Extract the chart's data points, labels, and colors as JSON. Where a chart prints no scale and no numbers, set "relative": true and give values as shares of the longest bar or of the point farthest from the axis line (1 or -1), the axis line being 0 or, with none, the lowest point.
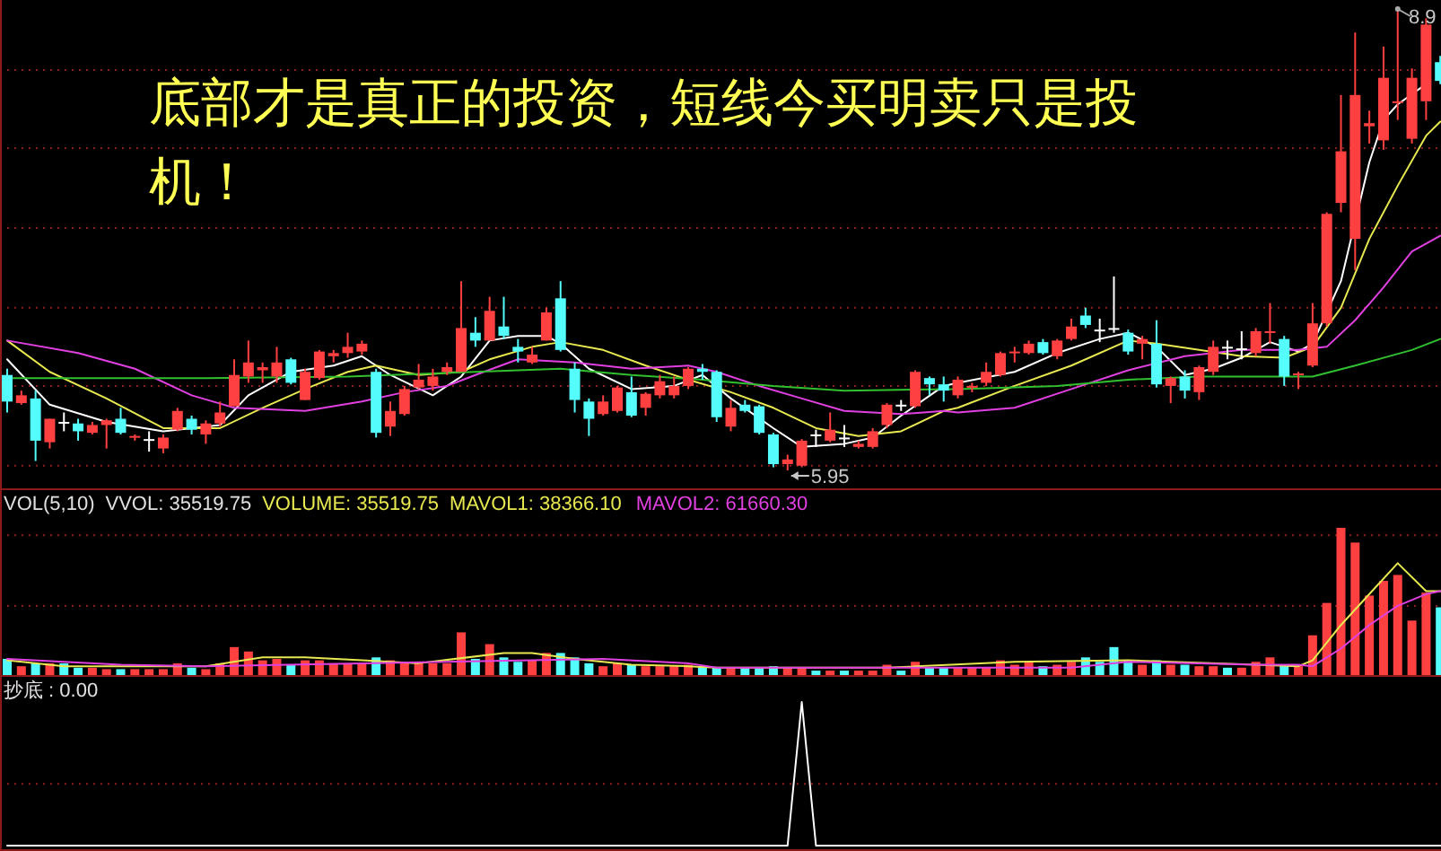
{
  "chart_data": [
    {
      "type": "candlestick",
      "title": "底部才是真正的投资，短线今买明卖只是投机！",
      "ref_lines": [
        {
          "axis": "y",
          "value": 8.51,
          "color": "#8b2020",
          "line_style": "dotted"
        },
        {
          "axis": "y",
          "value": 8.01,
          "color": "#8b2020",
          "line_style": "dotted"
        },
        {
          "axis": "y",
          "value": 7.5,
          "color": "#8b2020",
          "line_style": "dotted"
        },
        {
          "axis": "y",
          "value": 6.99,
          "color": "#8b2020",
          "line_style": "dotted"
        },
        {
          "axis": "y",
          "value": 6.49,
          "color": "#8b2020",
          "line_style": "dotted"
        },
        {
          "axis": "y",
          "value": 5.98,
          "color": "#8b2020",
          "line_style": "dotted"
        }
      ],
      "categories": [
        null,
        null,
        null,
        null,
        null,
        null,
        null,
        null,
        null,
        null,
        null,
        null,
        null,
        null,
        null,
        null,
        null,
        null,
        null,
        null,
        null,
        null,
        null,
        null,
        null,
        null,
        null,
        null,
        null,
        null,
        null,
        null,
        null,
        null,
        null,
        null,
        null,
        null,
        null,
        null,
        null,
        null,
        null,
        null,
        null,
        null,
        null,
        null,
        null,
        null,
        null,
        null,
        null,
        null,
        null,
        null,
        null,
        null,
        null,
        null,
        null,
        null,
        null,
        null,
        null,
        null,
        null,
        null,
        null,
        null,
        null,
        null,
        null,
        null,
        null,
        null,
        null,
        null,
        null,
        null,
        null,
        null,
        null,
        null,
        null,
        null,
        null,
        null,
        null,
        null,
        null,
        null,
        null,
        null,
        null,
        null,
        null,
        null,
        null,
        null,
        null,
        null
      ],
      "ohlc": [
        [
          6.56,
          6.6,
          6.32,
          6.39
        ],
        [
          6.38,
          6.46,
          6.37,
          6.43
        ],
        [
          6.41,
          6.46,
          6.01,
          6.14
        ],
        [
          6.13,
          6.28,
          6.09,
          6.28
        ],
        [
          6.26,
          6.32,
          6.2,
          6.26
        ],
        [
          6.25,
          6.28,
          6.14,
          6.2
        ],
        [
          6.19,
          6.26,
          6.18,
          6.24
        ],
        [
          6.24,
          6.28,
          6.09,
          6.27
        ],
        [
          6.28,
          6.35,
          6.18,
          6.19
        ],
        [
          6.16,
          6.18,
          6.14,
          6.17
        ],
        [
          6.15,
          6.2,
          6.07,
          6.15
        ],
        [
          6.09,
          6.18,
          6.06,
          6.16
        ],
        [
          6.21,
          6.35,
          6.2,
          6.33
        ],
        [
          6.28,
          6.3,
          6.18,
          6.21
        ],
        [
          6.18,
          6.27,
          6.12,
          6.25
        ],
        [
          6.25,
          6.39,
          6.23,
          6.32
        ],
        [
          6.36,
          6.66,
          6.36,
          6.56
        ],
        [
          6.55,
          6.78,
          6.51,
          6.64
        ],
        [
          6.59,
          6.64,
          6.51,
          6.61
        ],
        [
          6.55,
          6.74,
          6.51,
          6.64
        ],
        [
          6.66,
          6.67,
          6.5,
          6.51
        ],
        [
          6.4,
          6.6,
          6.4,
          6.58
        ],
        [
          6.54,
          6.72,
          6.53,
          6.71
        ],
        [
          6.68,
          6.72,
          6.64,
          6.7
        ],
        [
          6.7,
          6.83,
          6.67,
          6.74
        ],
        [
          6.71,
          6.78,
          6.69,
          6.76
        ],
        [
          6.58,
          6.6,
          6.16,
          6.19
        ],
        [
          6.23,
          6.39,
          6.17,
          6.33
        ],
        [
          6.31,
          6.49,
          6.3,
          6.47
        ],
        [
          6.48,
          6.63,
          6.47,
          6.53
        ],
        [
          6.49,
          6.6,
          6.46,
          6.55
        ],
        [
          6.58,
          6.64,
          6.56,
          6.61
        ],
        [
          6.58,
          7.16,
          6.58,
          6.86
        ],
        [
          6.83,
          6.93,
          6.74,
          6.78
        ],
        [
          6.78,
          7.06,
          6.78,
          6.97
        ],
        [
          6.87,
          7.06,
          6.79,
          6.81
        ],
        [
          6.74,
          6.79,
          6.64,
          6.71
        ],
        [
          6.64,
          6.74,
          6.63,
          6.69
        ],
        [
          6.78,
          6.99,
          6.78,
          6.96
        ],
        [
          7.05,
          7.16,
          6.71,
          6.72
        ],
        [
          6.6,
          6.64,
          6.32,
          6.4
        ],
        [
          6.39,
          6.41,
          6.17,
          6.28
        ],
        [
          6.31,
          6.43,
          6.3,
          6.39
        ],
        [
          6.33,
          6.49,
          6.32,
          6.48
        ],
        [
          6.45,
          6.55,
          6.29,
          6.3
        ],
        [
          6.35,
          6.45,
          6.3,
          6.44
        ],
        [
          6.43,
          6.56,
          6.41,
          6.52
        ],
        [
          6.43,
          6.55,
          6.41,
          6.49
        ],
        [
          6.49,
          6.61,
          6.47,
          6.6
        ],
        [
          6.6,
          6.63,
          6.53,
          6.58
        ],
        [
          6.58,
          6.59,
          6.26,
          6.29
        ],
        [
          6.23,
          6.4,
          6.2,
          6.35
        ],
        [
          6.37,
          6.4,
          6.32,
          6.33
        ],
        [
          6.36,
          6.37,
          6.18,
          6.19
        ],
        [
          6.18,
          6.19,
          5.97,
          5.99
        ],
        [
          5.99,
          6.05,
          5.95,
          6.02
        ],
        [
          5.98,
          6.15,
          5.97,
          6.14
        ],
        [
          6.18,
          6.21,
          6.1,
          6.18
        ],
        [
          6.14,
          6.32,
          6.13,
          6.21
        ],
        [
          6.16,
          6.24,
          6.1,
          6.16
        ],
        [
          6.1,
          6.14,
          6.09,
          6.12
        ],
        [
          6.1,
          6.22,
          6.09,
          6.2
        ],
        [
          6.24,
          6.38,
          6.22,
          6.37
        ],
        [
          6.37,
          6.4,
          6.33,
          6.37
        ],
        [
          6.36,
          6.59,
          6.35,
          6.58
        ],
        [
          6.54,
          6.55,
          6.43,
          6.5
        ],
        [
          6.5,
          6.55,
          6.39,
          6.46
        ],
        [
          6.43,
          6.55,
          6.41,
          6.53
        ],
        [
          6.48,
          6.51,
          6.45,
          6.49
        ],
        [
          6.51,
          6.64,
          6.49,
          6.58
        ],
        [
          6.56,
          6.71,
          6.55,
          6.7
        ],
        [
          6.7,
          6.74,
          6.64,
          6.71
        ],
        [
          6.7,
          6.78,
          6.69,
          6.76
        ],
        [
          6.77,
          6.79,
          6.69,
          6.7
        ],
        [
          6.68,
          6.79,
          6.66,
          6.78
        ],
        [
          6.79,
          6.92,
          6.78,
          6.87
        ],
        [
          6.94,
          6.99,
          6.86,
          6.88
        ],
        [
          6.85,
          6.92,
          6.77,
          6.85
        ],
        [
          6.86,
          7.19,
          6.83,
          6.86
        ],
        [
          6.83,
          6.85,
          6.69,
          6.71
        ],
        [
          6.76,
          6.81,
          6.66,
          6.79
        ],
        [
          6.76,
          6.91,
          6.48,
          6.5
        ],
        [
          6.49,
          6.55,
          6.38,
          6.54
        ],
        [
          6.55,
          6.59,
          6.41,
          6.46
        ],
        [
          6.45,
          6.62,
          6.4,
          6.61
        ],
        [
          6.58,
          6.78,
          6.56,
          6.74
        ],
        [
          6.74,
          6.78,
          6.66,
          6.74
        ],
        [
          6.73,
          6.84,
          6.66,
          6.73
        ],
        [
          6.7,
          6.86,
          6.68,
          6.84
        ],
        [
          6.83,
          7.02,
          6.76,
          6.84
        ],
        [
          6.79,
          6.81,
          6.49,
          6.55
        ],
        [
          6.56,
          6.58,
          6.47,
          6.57
        ],
        [
          6.62,
          7.02,
          6.61,
          6.89
        ],
        [
          6.89,
          7.6,
          6.87,
          7.59
        ],
        [
          7.66,
          8.35,
          7.6,
          7.99
        ],
        [
          7.43,
          8.75,
          7.23,
          8.35
        ],
        [
          8.15,
          8.25,
          8.04,
          8.17
        ],
        [
          8.06,
          8.66,
          8.0,
          8.46
        ],
        [
          8.3,
          8.9,
          8.19,
          8.31
        ],
        [
          8.07,
          8.52,
          8.04,
          8.46
        ],
        [
          8.31,
          8.84,
          8.19,
          8.8
        ],
        [
          8.56,
          8.6,
          8.42,
          8.44
        ]
      ],
      "colors": [
        "#54fcfc",
        "#ff4040",
        "#54fcfc",
        "#ff4040",
        "#ffffff",
        "#54fcfc",
        "#ff4040",
        "#ff4040",
        "#54fcfc",
        "#ff4040",
        "#ffffff",
        "#ff4040",
        "#ff4040",
        "#54fcfc",
        "#ff4040",
        "#ff4040",
        "#ff4040",
        "#ff4040",
        "#ff4040",
        "#ff4040",
        "#54fcfc",
        "#ff4040",
        "#ff4040",
        "#ff4040",
        "#ff4040",
        "#ff4040",
        "#54fcfc",
        "#ff4040",
        "#ff4040",
        "#ff4040",
        "#ff4040",
        "#ff4040",
        "#ff4040",
        "#54fcfc",
        "#ff4040",
        "#54fcfc",
        "#54fcfc",
        "#ff4040",
        "#ff4040",
        "#54fcfc",
        "#54fcfc",
        "#54fcfc",
        "#ff4040",
        "#ff4040",
        "#54fcfc",
        "#ff4040",
        "#ff4040",
        "#ff4040",
        "#ff4040",
        "#54fcfc",
        "#54fcfc",
        "#ff4040",
        "#54fcfc",
        "#54fcfc",
        "#54fcfc",
        "#ff4040",
        "#ff4040",
        "#ffffff",
        "#ff4040",
        "#ffffff",
        "#ff4040",
        "#ff4040",
        "#ff4040",
        "#ffffff",
        "#ff4040",
        "#54fcfc",
        "#54fcfc",
        "#ff4040",
        "#ff4040",
        "#ff4040",
        "#ff4040",
        "#ff4040",
        "#ff4040",
        "#54fcfc",
        "#ff4040",
        "#ff4040",
        "#54fcfc",
        "#ffffff",
        "#ffffff",
        "#54fcfc",
        "#ff4040",
        "#54fcfc",
        "#ff4040",
        "#54fcfc",
        "#ff4040",
        "#ff4040",
        "#ffffff",
        "#ffffff",
        "#ff4040",
        "#ff4040",
        "#54fcfc",
        "#ff4040",
        "#ff4040",
        "#ff4040",
        "#ff4040",
        "#ff4040",
        "#ff4040",
        "#ff4040",
        "#ff4040",
        "#ff4040",
        "#ff4040",
        "#54fcfc"
      ],
      "series": [
        {
          "type": "line",
          "color": "#ffffff",
          "values": [
            6.66,
            null,
            null,
            6.37,
            null,
            null,
            null,
            6.26,
            null,
            null,
            null,
            6.2,
            null,
            null,
            null,
            6.24,
            null,
            6.43,
            null,
            null,
            6.58,
            null,
            null,
            6.62,
            null,
            6.68,
            null,
            6.56,
            null,
            null,
            6.43,
            null,
            6.55,
            null,
            6.78,
            null,
            6.81,
            null,
            6.81,
            6.76,
            null,
            6.6,
            null,
            null,
            6.47,
            null,
            null,
            6.49,
            null,
            6.56,
            null,
            6.41,
            null,
            null,
            6.22,
            null,
            6.1,
            null,
            null,
            6.12,
            null,
            6.16,
            null,
            6.3,
            null,
            null,
            6.49,
            6.51,
            null,
            null,
            null,
            6.58,
            null,
            null,
            6.7,
            null,
            null,
            6.79,
            null,
            6.83,
            null,
            6.74,
            null,
            6.56,
            null,
            6.6,
            null,
            6.67,
            null,
            6.77,
            null,
            6.71,
            6.76,
            null,
            7.16,
            null,
            7.92,
            8.19,
            8.29,
            null,
            8.42,
            null
          ]
        },
        {
          "type": "line",
          "color": "#e8e850",
          "values": [
            6.78,
            null,
            null,
            6.58,
            null,
            null,
            null,
            6.41,
            null,
            null,
            null,
            6.22,
            null,
            null,
            null,
            6.22,
            null,
            null,
            6.35,
            null,
            null,
            6.47,
            null,
            null,
            6.58,
            null,
            6.62,
            null,
            null,
            6.56,
            null,
            null,
            6.58,
            null,
            6.66,
            null,
            null,
            6.74,
            null,
            6.77,
            null,
            null,
            6.72,
            null,
            null,
            6.62,
            null,
            null,
            6.53,
            null,
            null,
            6.45,
            null,
            null,
            6.35,
            null,
            null,
            6.22,
            null,
            null,
            6.17,
            null,
            null,
            6.2,
            null,
            null,
            6.33,
            6.35,
            null,
            null,
            null,
            6.49,
            null,
            null,
            null,
            6.62,
            null,
            null,
            null,
            6.78,
            null,
            6.76,
            null,
            null,
            6.72,
            null,
            null,
            6.68,
            null,
            null,
            6.67,
            null,
            6.74,
            null,
            6.99,
            null,
            7.43,
            null,
            7.77,
            null,
            8.09,
            8.18
          ]
        },
        {
          "type": "line",
          "color": "#e040e0",
          "values": [
            6.78,
            null,
            null,
            null,
            null,
            6.7,
            null,
            null,
            null,
            6.6,
            null,
            null,
            null,
            6.43,
            null,
            null,
            6.35,
            null,
            null,
            null,
            null,
            6.33,
            null,
            null,
            null,
            6.39,
            null,
            null,
            6.45,
            null,
            null,
            6.49,
            null,
            6.56,
            null,
            null,
            6.66,
            null,
            null,
            null,
            6.64,
            null,
            null,
            null,
            6.6,
            null,
            null,
            null,
            6.62,
            null,
            6.58,
            null,
            null,
            6.49,
            null,
            null,
            6.41,
            null,
            null,
            6.33,
            null,
            null,
            null,
            6.31,
            null,
            null,
            6.33,
            6.32,
            null,
            null,
            null,
            6.35,
            null,
            null,
            null,
            6.47,
            null,
            null,
            null,
            6.59,
            null,
            null,
            null,
            6.68,
            null,
            null,
            null,
            6.72,
            null,
            null,
            null,
            6.72,
            null,
            6.74,
            null,
            6.91,
            null,
            7.12,
            null,
            7.35,
            null,
            7.45
          ]
        },
        {
          "type": "line",
          "color": "#30c030",
          "values": [
            6.54,
            null,
            null,
            null,
            null,
            null,
            null,
            null,
            null,
            null,
            null,
            null,
            null,
            null,
            6.54,
            null,
            null,
            null,
            null,
            null,
            null,
            null,
            null,
            null,
            6.55,
            null,
            null,
            null,
            null,
            null,
            null,
            null,
            null,
            6.58,
            null,
            null,
            null,
            null,
            null,
            6.6,
            null,
            null,
            null,
            null,
            6.56,
            null,
            null,
            null,
            null,
            6.53,
            null,
            null,
            null,
            null,
            6.49,
            null,
            null,
            null,
            null,
            6.46,
            null,
            null,
            null,
            null,
            null,
            null,
            null,
            6.47,
            null,
            null,
            null,
            null,
            null,
            null,
            6.49,
            null,
            null,
            null,
            null,
            6.53,
            null,
            null,
            null,
            null,
            6.55,
            null,
            null,
            null,
            null,
            6.55,
            null,
            null,
            6.55,
            null,
            null,
            6.62,
            null,
            null,
            null,
            6.72,
            null,
            6.79
          ]
        }
      ],
      "annotations": [
        "8.9",
        "5.95"
      ]
    },
    {
      "type": "bar",
      "relative": true,
      "ref_lines": [
        {
          "axis": "y",
          "value": 0.95,
          "color": "#8b2020",
          "line_style": "dotted"
        },
        {
          "axis": "y",
          "value": 0.47,
          "color": "#8b2020",
          "line_style": "dotted"
        }
      ],
      "categories": [
        null,
        null,
        null,
        null,
        null,
        null,
        null,
        null,
        null,
        null,
        null,
        null,
        null,
        null,
        null,
        null,
        null,
        null,
        null,
        null,
        null,
        null,
        null,
        null,
        null,
        null,
        null,
        null,
        null,
        null,
        null,
        null,
        null,
        null,
        null,
        null,
        null,
        null,
        null,
        null,
        null,
        null,
        null,
        null,
        null,
        null,
        null,
        null,
        null,
        null,
        null,
        null,
        null,
        null,
        null,
        null,
        null,
        null,
        null,
        null,
        null,
        null,
        null,
        null,
        null,
        null,
        null,
        null,
        null,
        null,
        null,
        null,
        null,
        null,
        null,
        null,
        null,
        null,
        null,
        null,
        null,
        null,
        null,
        null,
        null,
        null,
        null,
        null,
        null,
        null,
        null,
        null,
        null,
        null,
        null,
        null,
        null,
        null,
        null,
        null,
        null,
        null
      ],
      "annotations": [
        "VOL(5,10)",
        "VVOL: 35519.75",
        "VOLUME: 35519.75"
      ],
      "series": [
        {
          "type": "bar",
          "values": [
            0.11,
            0.06,
            0.08,
            0.08,
            0.08,
            0.05,
            0.05,
            0.04,
            0.04,
            0.04,
            0.04,
            0.04,
            0.08,
            0.05,
            0.04,
            0.08,
            0.19,
            0.16,
            0.1,
            0.11,
            0.07,
            0.1,
            0.1,
            0.08,
            0.08,
            0.08,
            0.12,
            0.1,
            0.08,
            0.08,
            0.08,
            0.08,
            0.29,
            0.11,
            0.21,
            0.12,
            0.09,
            0.1,
            0.15,
            0.15,
            0.12,
            0.08,
            0.06,
            0.08,
            0.07,
            0.06,
            0.06,
            0.06,
            0.07,
            0.06,
            0.05,
            0.05,
            0.05,
            0.05,
            0.06,
            0.05,
            0.05,
            0.03,
            0.03,
            0.03,
            0.03,
            0.03,
            0.07,
            0.03,
            0.09,
            0.05,
            0.05,
            0.05,
            0.05,
            0.05,
            0.1,
            0.07,
            0.09,
            0.06,
            0.07,
            0.09,
            0.12,
            0.09,
            0.19,
            0.1,
            0.07,
            0.1,
            0.07,
            0.07,
            0.06,
            0.06,
            0.05,
            0.05,
            0.09,
            0.12,
            0.07,
            0.06,
            0.27,
            0.49,
            1,
            0.9,
            0.54,
            0.64,
            0.68,
            0.37,
            0.56,
            0.46
          ],
          "colors": [
            "#54fcfc",
            "#ff4040",
            "#54fcfc",
            "#ff4040",
            "#54fcfc",
            "#54fcfc",
            "#ff4040",
            "#ff4040",
            "#54fcfc",
            "#ff4040",
            "#ff4040",
            "#ff4040",
            "#ff4040",
            "#54fcfc",
            "#ff4040",
            "#ff4040",
            "#ff4040",
            "#ff4040",
            "#ff4040",
            "#ff4040",
            "#54fcfc",
            "#ff4040",
            "#ff4040",
            "#ff4040",
            "#ff4040",
            "#ff4040",
            "#54fcfc",
            "#ff4040",
            "#ff4040",
            "#ff4040",
            "#ff4040",
            "#ff4040",
            "#ff4040",
            "#54fcfc",
            "#ff4040",
            "#54fcfc",
            "#54fcfc",
            "#ff4040",
            "#ff4040",
            "#54fcfc",
            "#54fcfc",
            "#54fcfc",
            "#ff4040",
            "#ff4040",
            "#54fcfc",
            "#ff4040",
            "#ff4040",
            "#ff4040",
            "#ff4040",
            "#54fcfc",
            "#54fcfc",
            "#ff4040",
            "#54fcfc",
            "#54fcfc",
            "#54fcfc",
            "#ff4040",
            "#ff4040",
            "#54fcfc",
            "#ff4040",
            "#54fcfc",
            "#ff4040",
            "#ff4040",
            "#ff4040",
            "#54fcfc",
            "#ff4040",
            "#54fcfc",
            "#54fcfc",
            "#ff4040",
            "#ff4040",
            "#ff4040",
            "#ff4040",
            "#ff4040",
            "#ff4040",
            "#54fcfc",
            "#ff4040",
            "#ff4040",
            "#54fcfc",
            "#54fcfc",
            "#54fcfc",
            "#54fcfc",
            "#ff4040",
            "#54fcfc",
            "#ff4040",
            "#54fcfc",
            "#ff4040",
            "#ff4040",
            "#54fcfc",
            "#ff4040",
            "#ff4040",
            "#ff4040",
            "#54fcfc",
            "#ff4040",
            "#ff4040",
            "#ff4040",
            "#ff4040",
            "#ff4040",
            "#ff4040",
            "#ff4040",
            "#ff4040",
            "#ff4040",
            "#ff4040",
            "#54fcfc"
          ]
        },
        {
          "type": "line",
          "name": "MAVOL1: 38366.10",
          "color": "#e8e850",
          "values": [
            0.1,
            null,
            null,
            null,
            0.06,
            null,
            null,
            null,
            null,
            null,
            null,
            null,
            null,
            null,
            0.06,
            null,
            null,
            null,
            0.12,
            null,
            null,
            0.12,
            null,
            null,
            null,
            0.1,
            null,
            null,
            null,
            0.08,
            null,
            null,
            null,
            null,
            null,
            0.15,
            null,
            0.15,
            null,
            null,
            0.11,
            null,
            null,
            null,
            0.07,
            null,
            null,
            null,
            0.06,
            null,
            0.05,
            null,
            null,
            null,
            null,
            null,
            null,
            null,
            null,
            null,
            null,
            null,
            0.05,
            null,
            null,
            null,
            null,
            null,
            null,
            null,
            null,
            0.09,
            null,
            null,
            null,
            null,
            null,
            null,
            null,
            0.1,
            null,
            null,
            null,
            null,
            null,
            null,
            null,
            null,
            0.07,
            null,
            null,
            0.06,
            0.1,
            null,
            0.34,
            null,
            0.55,
            null,
            0.76,
            null,
            0.57,
            0.57
          ]
        },
        {
          "type": "line",
          "name": "MAVOL2: 61660.30",
          "color": "#e040e0",
          "values": [
            0.11,
            null,
            null,
            null,
            null,
            null,
            null,
            null,
            0.07,
            null,
            null,
            null,
            null,
            null,
            0.06,
            null,
            null,
            null,
            null,
            null,
            null,
            null,
            null,
            null,
            null,
            0.08,
            null,
            null,
            null,
            null,
            null,
            null,
            null,
            null,
            null,
            null,
            null,
            0.1,
            null,
            null,
            null,
            null,
            0.11,
            null,
            null,
            null,
            null,
            null,
            0.08,
            null,
            0.05,
            null,
            null,
            null,
            null,
            null,
            null,
            null,
            null,
            null,
            null,
            null,
            null,
            null,
            null,
            null,
            null,
            null,
            null,
            null,
            null,
            null,
            null,
            null,
            null,
            0.05,
            null,
            null,
            null,
            0.09,
            null,
            null,
            null,
            null,
            null,
            null,
            null,
            null,
            0.07,
            null,
            null,
            0.07,
            0.06,
            null,
            0.18,
            null,
            0.34,
            null,
            0.47,
            null,
            0.55,
            0.57
          ]
        }
      ]
    },
    {
      "type": "line",
      "relative": true,
      "ref_lines": [
        {
          "axis": "y",
          "value": 0.43,
          "color": "#8b2020",
          "line_style": "dotted"
        }
      ],
      "categories": [
        null,
        null,
        null,
        null,
        null,
        null,
        null,
        null,
        null,
        null,
        null,
        null,
        null,
        null,
        null,
        null,
        null,
        null,
        null,
        null,
        null,
        null,
        null,
        null,
        null,
        null,
        null,
        null,
        null,
        null,
        null,
        null,
        null,
        null,
        null,
        null,
        null,
        null,
        null,
        null,
        null,
        null,
        null,
        null,
        null,
        null,
        null,
        null,
        null,
        null,
        null,
        null,
        null,
        null,
        null,
        null,
        null,
        null,
        null,
        null,
        null,
        null,
        null,
        null,
        null,
        null,
        null,
        null,
        null,
        null,
        null,
        null,
        null,
        null,
        null,
        null,
        null,
        null,
        null,
        null,
        null,
        null,
        null,
        null,
        null,
        null,
        null,
        null,
        null,
        null,
        null,
        null,
        null,
        null,
        null,
        null,
        null,
        null,
        null,
        null,
        null,
        null
      ],
      "annotations": [
        "抄底 : 0.00"
      ],
      "series": [
        {
          "color": "#ffffff",
          "values": [
            0,
            0,
            0,
            0,
            0,
            0,
            0,
            0,
            0,
            0,
            0,
            0,
            0,
            0,
            0,
            0,
            0,
            0,
            0,
            0,
            0,
            0,
            0,
            0,
            0,
            0,
            0,
            0,
            0,
            0,
            0,
            0,
            0,
            0,
            0,
            0,
            0,
            0,
            0,
            0,
            0,
            0,
            0,
            0,
            0,
            0,
            0,
            0,
            0,
            0,
            0,
            0,
            0,
            0,
            0,
            0,
            1,
            0,
            0,
            0,
            0,
            0,
            0,
            0,
            0,
            0,
            0,
            0,
            0,
            0,
            0,
            0,
            0,
            0,
            0,
            0,
            0,
            0,
            0,
            0,
            0,
            0,
            0,
            0,
            0,
            0,
            0,
            0,
            0,
            0,
            0,
            0,
            0,
            0,
            0,
            0,
            0,
            0,
            0,
            0,
            0,
            0
          ]
        }
      ]
    }
  ]
}
